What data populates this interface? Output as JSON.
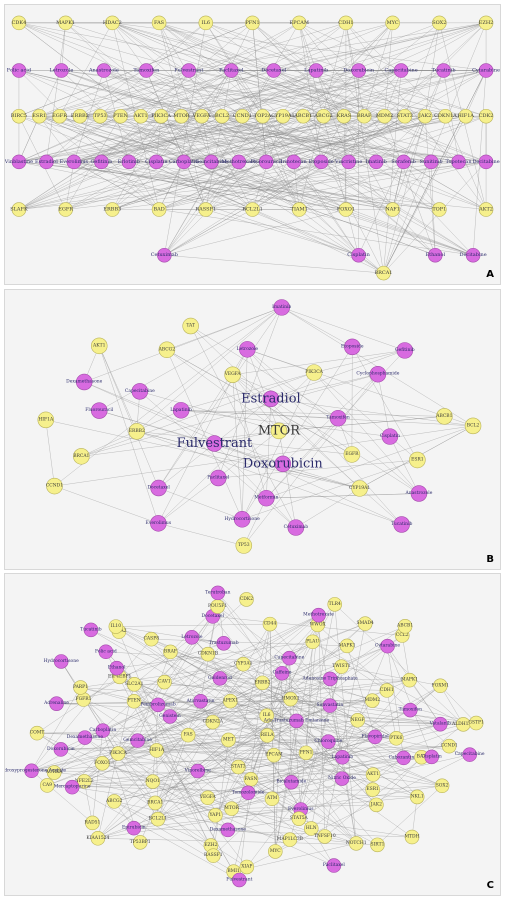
{
  "colors": {
    "gene_node": "#f6f08c",
    "drug_node": "#d86be0",
    "edge": "#8d8d8d",
    "label": "#2b2b6b",
    "panel_background": "#f4f4f4"
  },
  "panels": [
    {
      "letter": "A",
      "layout": "layered",
      "rows": [
        {
          "type": "gene",
          "nodes": [
            "CDK4",
            "MAPK1",
            "HDAC2",
            "FAS",
            "IL6",
            "PFN1",
            "EPCAM",
            "CDH1",
            "MYC",
            "SOX2",
            "EZH2"
          ]
        },
        {
          "type": "drug",
          "nodes": [
            "Folic acid",
            "Letrozole",
            "Anastrozole",
            "Tamoxifen",
            "Fulvestrant",
            "Paclitaxel",
            "Docetaxel",
            "Lapatinib",
            "Doxorubicin",
            "Capecitabine",
            "Tucatinib",
            "Cytarabine"
          ]
        },
        {
          "type": "gene",
          "nodes": [
            "BIRC5",
            "ESR1",
            "EGFR",
            "ERBB2",
            "TP53",
            "PTEN",
            "AKT1",
            "PIK3CA",
            "MTOR",
            "VEGFA",
            "BCL2",
            "CCND1",
            "TOP2A",
            "CYP19A1",
            "ABCB1",
            "ABCG2",
            "KRAS",
            "BRAF",
            "MDM2",
            "STAT3",
            "JAK2",
            "CDKN1A",
            "HIF1A",
            "CDK2"
          ]
        },
        {
          "type": "drug",
          "nodes": [
            "Vinblastine",
            "Estradiol",
            "Everolimus",
            "Gefitinib",
            "Erlotinib",
            "Cisplatin",
            "Carboplatin",
            "Gemcitabine",
            "Methotrexate",
            "Fluorouracil",
            "Irinotecan",
            "Etoposide",
            "Vincristine",
            "Imatinib",
            "Sorafenib",
            "Sunitinib",
            "Topotecan",
            "Decitabine"
          ]
        },
        {
          "type": "gene",
          "nodes": [
            "SLAFK",
            "EGFR",
            "ERBB3",
            "BAD",
            "RASSF1",
            "BCL2L1",
            "TIAM1",
            "FOXO1",
            "NAF1",
            "TOP1",
            "AKT2"
          ]
        },
        {
          "type": "drug",
          "nodes": [
            "Cetuximab",
            "Cisplatin",
            "Ethanol",
            "Decitabine"
          ]
        },
        {
          "type": "gene",
          "nodes": [
            "BRCA1"
          ]
        }
      ]
    },
    {
      "letter": "B",
      "layout": "cluster",
      "nodes": [
        {
          "label": "MTOR",
          "type": "gene",
          "big": true
        },
        {
          "label": "Fulvestrant",
          "type": "drug",
          "big": true
        },
        {
          "label": "Estradiol",
          "type": "drug",
          "big": true
        },
        {
          "label": "Doxorubicin",
          "type": "drug",
          "big": true
        },
        {
          "label": "Lapatinib",
          "type": "drug"
        },
        {
          "label": "Tamoxifen",
          "type": "drug"
        },
        {
          "label": "Paclitaxel",
          "type": "drug"
        },
        {
          "label": "VEGFA",
          "type": "gene"
        },
        {
          "label": "EGFR",
          "type": "gene"
        },
        {
          "label": "ERBB2",
          "type": "gene"
        },
        {
          "label": "PIK3CA",
          "type": "gene"
        },
        {
          "label": "Metformin",
          "type": "drug"
        },
        {
          "label": "Capecitabine",
          "type": "drug"
        },
        {
          "label": "Cisplatin",
          "type": "drug"
        },
        {
          "label": "Docetaxel",
          "type": "drug"
        },
        {
          "label": "Letrozole",
          "type": "drug"
        },
        {
          "label": "CYP19A1",
          "type": "gene"
        },
        {
          "label": "Fluorouracil",
          "type": "drug"
        },
        {
          "label": "Cyclophosphamide",
          "type": "drug"
        },
        {
          "label": "Hydrocortisone",
          "type": "drug"
        },
        {
          "label": "ABCG2",
          "type": "gene"
        },
        {
          "label": "ESR1",
          "type": "gene"
        },
        {
          "label": "BRCA1",
          "type": "gene"
        },
        {
          "label": "Etoposide",
          "type": "drug"
        },
        {
          "label": "Cetuximab",
          "type": "drug"
        },
        {
          "label": "Dexamethasone",
          "type": "drug"
        },
        {
          "label": "ABCB1",
          "type": "gene"
        },
        {
          "label": "Everolimus",
          "type": "drug"
        },
        {
          "label": "TAT",
          "type": "gene"
        },
        {
          "label": "Anastrozole",
          "type": "drug"
        },
        {
          "label": "HIF1A",
          "type": "gene"
        },
        {
          "label": "Gefitinib",
          "type": "drug"
        },
        {
          "label": "TP53",
          "type": "gene"
        },
        {
          "label": "AKT1",
          "type": "gene"
        },
        {
          "label": "BCL2",
          "type": "gene"
        },
        {
          "label": "CCND1",
          "type": "gene"
        },
        {
          "label": "Imatinib",
          "type": "drug"
        },
        {
          "label": "Tucatinib",
          "type": "drug"
        }
      ]
    },
    {
      "letter": "C",
      "layout": "cluster",
      "nodes": [
        {
          "label": "RELA",
          "type": "gene"
        },
        {
          "label": "MET",
          "type": "gene"
        },
        {
          "label": "IL6",
          "type": "gene"
        },
        {
          "label": "EPCAM",
          "type": "gene"
        },
        {
          "label": "CDKN2A",
          "type": "gene"
        },
        {
          "label": "Ado-Trastuzumab Emtansine",
          "type": "drug"
        },
        {
          "label": "STAT3",
          "type": "gene"
        },
        {
          "label": "APEX1",
          "type": "gene"
        },
        {
          "label": "PFN1",
          "type": "gene"
        },
        {
          "label": "FAS",
          "type": "gene"
        },
        {
          "label": "HMOX1",
          "type": "gene"
        },
        {
          "label": "FASN",
          "type": "gene"
        },
        {
          "label": "Atorvastatin",
          "type": "drug"
        },
        {
          "label": "Chloroquine",
          "type": "drug"
        },
        {
          "label": "Vinorelbine",
          "type": "drug"
        },
        {
          "label": "ERBB2",
          "type": "gene"
        },
        {
          "label": "Bicalutamide",
          "type": "drug"
        },
        {
          "label": "Genistein",
          "type": "drug"
        },
        {
          "label": "Simvastatin",
          "type": "drug"
        },
        {
          "label": "Temozolomide",
          "type": "drug"
        },
        {
          "label": "Goldenrod",
          "type": "drug"
        },
        {
          "label": "Lapatinib",
          "type": "drug"
        },
        {
          "label": "HIF1A",
          "type": "gene"
        },
        {
          "label": "Caffeine",
          "type": "drug"
        },
        {
          "label": "ATM",
          "type": "gene"
        },
        {
          "label": "Pembrolizumab",
          "type": "drug"
        },
        {
          "label": "NEGF",
          "type": "gene"
        },
        {
          "label": "VEGFA",
          "type": "gene"
        },
        {
          "label": "CYP3A1",
          "type": "gene"
        },
        {
          "label": "Nitric Oxide",
          "type": "drug"
        },
        {
          "label": "Gemcitabine",
          "type": "drug"
        },
        {
          "label": "Adenosine Triphosphate",
          "type": "drug"
        },
        {
          "label": "MTOR",
          "type": "gene"
        },
        {
          "label": "CAV1",
          "type": "gene"
        },
        {
          "label": "Flavopiridol",
          "type": "drug"
        },
        {
          "label": "NQO1",
          "type": "gene"
        },
        {
          "label": "Capecitabine",
          "type": "drug"
        },
        {
          "label": "Everolimus",
          "type": "drug"
        },
        {
          "label": "PTEN",
          "type": "gene"
        },
        {
          "label": "MDM2",
          "type": "gene"
        },
        {
          "label": "YAP1",
          "type": "gene"
        },
        {
          "label": "CDKN1B",
          "type": "gene"
        },
        {
          "label": "AKT1",
          "type": "gene"
        },
        {
          "label": "PIK3CA",
          "type": "gene"
        },
        {
          "label": "TWIST1",
          "type": "gene"
        },
        {
          "label": "STAT5A",
          "type": "gene"
        },
        {
          "label": "SLC2A1",
          "type": "gene"
        },
        {
          "label": "PTK6",
          "type": "gene"
        },
        {
          "label": "BRCA1",
          "type": "gene"
        },
        {
          "label": "Trastuzumab",
          "type": "drug"
        },
        {
          "label": "ESR1",
          "type": "gene"
        },
        {
          "label": "Carboplatin",
          "type": "drug"
        },
        {
          "label": "CDH1",
          "type": "gene"
        },
        {
          "label": "Dexamethasone",
          "type": "drug"
        },
        {
          "label": "BRAF",
          "type": "gene"
        },
        {
          "label": "Cabozantinib",
          "type": "drug"
        },
        {
          "label": "FOXO1",
          "type": "gene"
        },
        {
          "label": "PLAU",
          "type": "gene"
        },
        {
          "label": "HLN",
          "type": "gene"
        },
        {
          "label": "EIF4EBP1",
          "type": "gene"
        },
        {
          "label": "Tamoxifen",
          "type": "drug"
        },
        {
          "label": "BCL2L1",
          "type": "gene"
        },
        {
          "label": "Letrozole",
          "type": "drug"
        },
        {
          "label": "JAK2",
          "type": "gene"
        },
        {
          "label": "Dexamethasone",
          "type": "drug"
        },
        {
          "label": "MAPK1",
          "type": "gene"
        },
        {
          "label": "MAP1LC3B",
          "type": "gene"
        },
        {
          "label": "Ethanol",
          "type": "drug"
        },
        {
          "label": "BAX",
          "type": "gene"
        },
        {
          "label": "ABCG2",
          "type": "gene"
        },
        {
          "label": "CD44",
          "type": "gene"
        },
        {
          "label": "TNFSF10",
          "type": "gene"
        },
        {
          "label": "FGFR1",
          "type": "gene"
        },
        {
          "label": "MAPK1",
          "type": "gene"
        },
        {
          "label": "EZH2",
          "type": "gene"
        },
        {
          "label": "CASP8",
          "type": "gene"
        },
        {
          "label": "Cisplatin",
          "type": "drug"
        },
        {
          "label": "NFE2L2",
          "type": "gene"
        },
        {
          "label": "WWOX",
          "type": "gene"
        },
        {
          "label": "MYC",
          "type": "gene"
        },
        {
          "label": "PARP1",
          "type": "gene"
        },
        {
          "label": "Vatalanib",
          "type": "drug"
        },
        {
          "label": "Epirubicin",
          "type": "drug"
        },
        {
          "label": "Docetaxel",
          "type": "drug"
        },
        {
          "label": "NKL1",
          "type": "gene"
        },
        {
          "label": "Doxorubicin",
          "type": "drug"
        },
        {
          "label": "Cytarabine",
          "type": "drug"
        },
        {
          "label": "RASSF1",
          "type": "gene"
        },
        {
          "label": "Folic acid",
          "type": "drug"
        },
        {
          "label": "CCND1",
          "type": "gene"
        },
        {
          "label": "Mercaptopurine",
          "type": "drug"
        },
        {
          "label": "Methotrexate",
          "type": "drug"
        },
        {
          "label": "NOTCH1",
          "type": "gene"
        },
        {
          "label": "Adrenaline",
          "type": "drug"
        },
        {
          "label": "FOXM1",
          "type": "gene"
        },
        {
          "label": "TP53BP1",
          "type": "gene"
        },
        {
          "label": "POU5F1",
          "type": "gene"
        },
        {
          "label": "SOX2",
          "type": "gene"
        },
        {
          "label": "AURKA",
          "type": "gene"
        },
        {
          "label": "SMAD4",
          "type": "gene"
        },
        {
          "label": "XIAP",
          "type": "gene"
        },
        {
          "label": "ACTA2",
          "type": "gene"
        },
        {
          "label": "ALDH1A1",
          "type": "gene"
        },
        {
          "label": "RAD51",
          "type": "gene"
        },
        {
          "label": "CDK2",
          "type": "gene"
        },
        {
          "label": "SIRT1",
          "type": "gene"
        },
        {
          "label": "COMT",
          "type": "gene"
        },
        {
          "label": "CCL2",
          "type": "gene"
        },
        {
          "label": "BMI1",
          "type": "gene"
        },
        {
          "label": "IL10",
          "type": "gene"
        },
        {
          "label": "Capecitabine",
          "type": "drug"
        },
        {
          "label": "CA9",
          "type": "gene"
        },
        {
          "label": "TLR4",
          "type": "gene"
        },
        {
          "label": "Paclitaxel",
          "type": "drug"
        },
        {
          "label": "Hydrocortisone",
          "type": "drug"
        },
        {
          "label": "GSTP1",
          "type": "gene"
        },
        {
          "label": "KIAA1524",
          "type": "gene"
        },
        {
          "label": "Terutroban",
          "type": "drug"
        },
        {
          "label": "MTDH",
          "type": "gene"
        },
        {
          "label": "Medroxyprogesterone Acetate",
          "type": "drug"
        },
        {
          "label": "ABCB1",
          "type": "gene"
        },
        {
          "label": "Fulvestrant",
          "type": "drug"
        },
        {
          "label": "Tucatinib",
          "type": "drug"
        }
      ]
    }
  ]
}
